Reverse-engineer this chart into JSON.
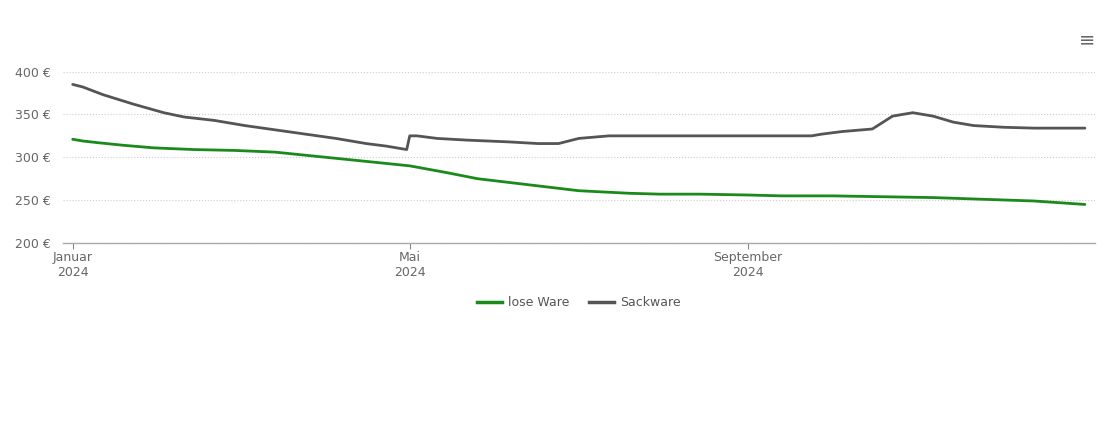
{
  "background_color": "#ffffff",
  "grid_color": "#cccccc",
  "ylim": [
    200,
    415
  ],
  "yticks": [
    200,
    250,
    300,
    350,
    400
  ],
  "xtick_labels": [
    "Januar\n2024",
    "Mai\n2024",
    "September\n2024"
  ],
  "xtick_positions": [
    0.0,
    0.333,
    0.667
  ],
  "lose_ware_color": "#1a8a1a",
  "sackware_color": "#555555",
  "line_width": 2.0,
  "legend_labels": [
    "lose Ware",
    "Sackware"
  ],
  "lose_ware_x": [
    0.0,
    0.01,
    0.025,
    0.05,
    0.08,
    0.12,
    0.16,
    0.2,
    0.25,
    0.3,
    0.333,
    0.37,
    0.4,
    0.45,
    0.5,
    0.55,
    0.58,
    0.62,
    0.667,
    0.7,
    0.75,
    0.8,
    0.85,
    0.9,
    0.95,
    1.0
  ],
  "lose_ware_y": [
    321,
    319,
    317,
    314,
    311,
    309,
    308,
    306,
    300,
    294,
    290,
    282,
    275,
    268,
    261,
    258,
    257,
    257,
    256,
    255,
    255,
    254,
    253,
    251,
    249,
    245
  ],
  "sackware_x": [
    0.0,
    0.01,
    0.03,
    0.06,
    0.09,
    0.11,
    0.14,
    0.17,
    0.2,
    0.23,
    0.26,
    0.29,
    0.31,
    0.32,
    0.325,
    0.33,
    0.333,
    0.34,
    0.36,
    0.39,
    0.43,
    0.46,
    0.48,
    0.5,
    0.53,
    0.56,
    0.6,
    0.63,
    0.66,
    0.667,
    0.68,
    0.7,
    0.72,
    0.73,
    0.74,
    0.76,
    0.79,
    0.81,
    0.83,
    0.85,
    0.87,
    0.89,
    0.92,
    0.95,
    0.97,
    1.0
  ],
  "sackware_y": [
    385,
    382,
    373,
    362,
    352,
    347,
    343,
    337,
    332,
    327,
    322,
    316,
    313,
    311,
    310,
    309,
    325,
    325,
    322,
    320,
    318,
    316,
    316,
    322,
    325,
    325,
    325,
    325,
    325,
    325,
    325,
    325,
    325,
    325,
    327,
    330,
    333,
    348,
    352,
    348,
    341,
    337,
    335,
    334,
    334,
    334
  ]
}
